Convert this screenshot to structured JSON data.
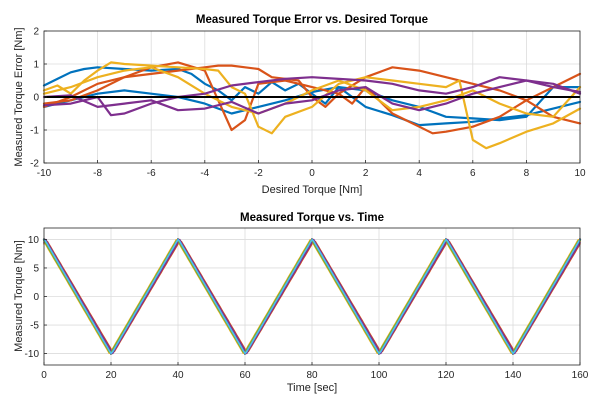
{
  "chart_data": [
    {
      "type": "line",
      "title": "Measured Torque Error vs. Desired Torque",
      "xlabel": "Desired Torque [Nm]",
      "ylabel": "Measured Torque Error [Nm]",
      "xlim": [
        -10,
        10
      ],
      "ylim": [
        -2,
        2
      ],
      "xticks": [
        "-10",
        "-8",
        "-6",
        "-4",
        "-2",
        "0",
        "2",
        "4",
        "6",
        "8",
        "10"
      ],
      "yticks": [
        "-2",
        "-1",
        "0",
        "1",
        "2"
      ],
      "grid": true,
      "reference_line": {
        "color": "#000000",
        "x": [
          -10,
          10
        ],
        "y": [
          0,
          0
        ]
      },
      "series": [
        {
          "color": "#0072BD",
          "x": [
            -10,
            -9.5,
            -9,
            -8.5,
            -8,
            -7,
            -6,
            -5,
            -4.5,
            -4,
            -3.5,
            -3,
            -2.5,
            -2,
            -1.5,
            -1,
            -0.5,
            0,
            0.5,
            1,
            1.5,
            2,
            3,
            4,
            5,
            6,
            7,
            8,
            9,
            10
          ],
          "y": [
            0.35,
            0.55,
            0.75,
            0.85,
            0.9,
            0.85,
            0.8,
            0.85,
            0.7,
            0.4,
            0.2,
            -0.1,
            0.3,
            0.1,
            0.45,
            0.2,
            0.4,
            0.1,
            -0.2,
            0.3,
            0.0,
            -0.3,
            -0.55,
            -0.85,
            -0.8,
            -0.75,
            -0.65,
            -0.55,
            -0.35,
            -0.15
          ]
        },
        {
          "color": "#0072BD",
          "x": [
            -10,
            -9,
            -8,
            -7,
            -6,
            -5,
            -4,
            -3,
            -2,
            -1,
            0,
            1,
            2,
            3,
            4,
            5,
            6,
            7,
            8,
            9,
            10
          ],
          "y": [
            -0.3,
            -0.1,
            0.1,
            0.2,
            0.1,
            0.0,
            -0.2,
            -0.5,
            -0.3,
            -0.1,
            0.15,
            0.3,
            0.2,
            -0.1,
            -0.3,
            -0.6,
            -0.65,
            -0.7,
            -0.6,
            0.3,
            0.3
          ]
        },
        {
          "color": "#D95319",
          "x": [
            -10,
            -9,
            -8,
            -7,
            -6,
            -5,
            -4,
            -3.5,
            -3,
            -2.5,
            -2,
            -1.5,
            -1,
            -0.5,
            0,
            0.5,
            1,
            1.5,
            2,
            2.5,
            3,
            3.5,
            4,
            4.5,
            5,
            6,
            7,
            8,
            9,
            10
          ],
          "y": [
            -0.3,
            0.0,
            0.4,
            0.6,
            0.7,
            0.8,
            0.9,
            0.95,
            0.95,
            0.9,
            0.85,
            0.6,
            0.55,
            0.5,
            0.0,
            -0.3,
            0.1,
            -0.2,
            0.3,
            -0.1,
            -0.5,
            -0.7,
            -0.9,
            -1.1,
            -1.05,
            -0.9,
            -0.6,
            -0.1,
            0.3,
            0.7
          ]
        },
        {
          "color": "#D95319",
          "x": [
            -10,
            -9,
            -8,
            -7,
            -6,
            -5,
            -4,
            -3,
            -2.5,
            -2,
            -1,
            0,
            1,
            2,
            3,
            4,
            5,
            6,
            7,
            8,
            9,
            10
          ],
          "y": [
            -0.2,
            -0.1,
            0.2,
            0.6,
            0.9,
            1.05,
            0.8,
            -1.0,
            -0.7,
            0.4,
            0.5,
            0.3,
            0.1,
            0.6,
            0.9,
            0.8,
            0.6,
            0.4,
            0.2,
            -0.1,
            -0.6,
            -0.8
          ]
        },
        {
          "color": "#EDB120",
          "x": [
            -10,
            -9.5,
            -9,
            -8.5,
            -8,
            -7.5,
            -7,
            -6,
            -5,
            -4,
            -3.5,
            -3,
            -2.5,
            -2,
            -1.5,
            -1,
            0,
            1,
            2,
            3,
            4,
            5,
            5.5,
            6,
            6.5,
            7,
            8,
            9,
            10
          ],
          "y": [
            0.2,
            0.35,
            0.1,
            0.5,
            0.8,
            1.05,
            1.0,
            0.95,
            0.9,
            0.85,
            0.8,
            0.3,
            0.1,
            -0.9,
            -1.1,
            -0.6,
            -0.3,
            0.4,
            0.6,
            0.5,
            0.4,
            0.3,
            0.5,
            -1.3,
            -1.55,
            -1.4,
            -1.05,
            -0.8,
            -0.35
          ]
        },
        {
          "color": "#EDB120",
          "x": [
            -10,
            -9,
            -8,
            -7,
            -6,
            -5,
            -4,
            -3,
            -2,
            -1,
            0,
            1,
            2,
            3,
            4,
            5,
            6,
            7,
            8,
            9,
            10
          ],
          "y": [
            0.1,
            0.3,
            0.6,
            0.8,
            0.9,
            0.6,
            0.1,
            -0.3,
            -0.5,
            -0.2,
            0.2,
            0.5,
            0.2,
            -0.4,
            -0.3,
            -0.1,
            0.2,
            -0.2,
            -0.5,
            -0.6,
            0.3
          ]
        },
        {
          "color": "#7E2F8E",
          "x": [
            -10,
            -9,
            -8,
            -7.5,
            -7,
            -6,
            -5,
            -4,
            -3,
            -2,
            -1,
            0,
            1,
            2,
            3,
            4,
            5,
            6,
            7,
            8,
            9,
            10
          ],
          "y": [
            -0.25,
            -0.2,
            0.0,
            -0.55,
            -0.5,
            -0.2,
            0.0,
            0.1,
            0.35,
            0.45,
            0.55,
            0.6,
            0.55,
            0.5,
            0.4,
            0.2,
            0.1,
            0.3,
            0.6,
            0.5,
            0.3,
            0.15
          ]
        },
        {
          "color": "#7E2F8E",
          "x": [
            -10,
            -9,
            -8,
            -7,
            -6,
            -5,
            -4,
            -3,
            -2,
            -1,
            0,
            1,
            2,
            3,
            4,
            5,
            6,
            7,
            8,
            9,
            10
          ],
          "y": [
            0.0,
            0.05,
            -0.3,
            -0.2,
            -0.1,
            -0.4,
            -0.35,
            -0.15,
            -0.5,
            -0.2,
            -0.1,
            0.2,
            0.3,
            -0.2,
            -0.4,
            -0.2,
            0.1,
            0.3,
            0.5,
            0.4,
            0.1
          ]
        }
      ]
    },
    {
      "type": "line",
      "title": "Measured Torque vs. Time",
      "xlabel": "Time [sec]",
      "ylabel": "Measured Torque [Nm]",
      "xlim": [
        0,
        160
      ],
      "ylim": [
        -12,
        12
      ],
      "xticks": [
        "0",
        "20",
        "40",
        "60",
        "80",
        "100",
        "120",
        "140",
        "160"
      ],
      "yticks": [
        "-10",
        "-5",
        "0",
        "5",
        "10"
      ],
      "grid": true,
      "waveform": {
        "type": "triangle",
        "period": 40,
        "amplitude": 10
      },
      "series": [
        {
          "color": "#000000",
          "time_offset": 0,
          "amplitude_offset": 0
        },
        {
          "color": "#0072BD",
          "time_offset": 0.3,
          "amplitude_offset": 0.3
        },
        {
          "color": "#D95319",
          "time_offset": 0.7,
          "amplitude_offset": -0.4
        },
        {
          "color": "#EDB120",
          "time_offset": -0.4,
          "amplitude_offset": 0.2
        },
        {
          "color": "#7E2F8E",
          "time_offset": 0.5,
          "amplitude_offset": -0.2
        },
        {
          "color": "#77AC30",
          "time_offset": -0.2,
          "amplitude_offset": 0.1
        },
        {
          "color": "#4DBEEE",
          "time_offset": 0.1,
          "amplitude_offset": 0.4
        }
      ]
    }
  ]
}
